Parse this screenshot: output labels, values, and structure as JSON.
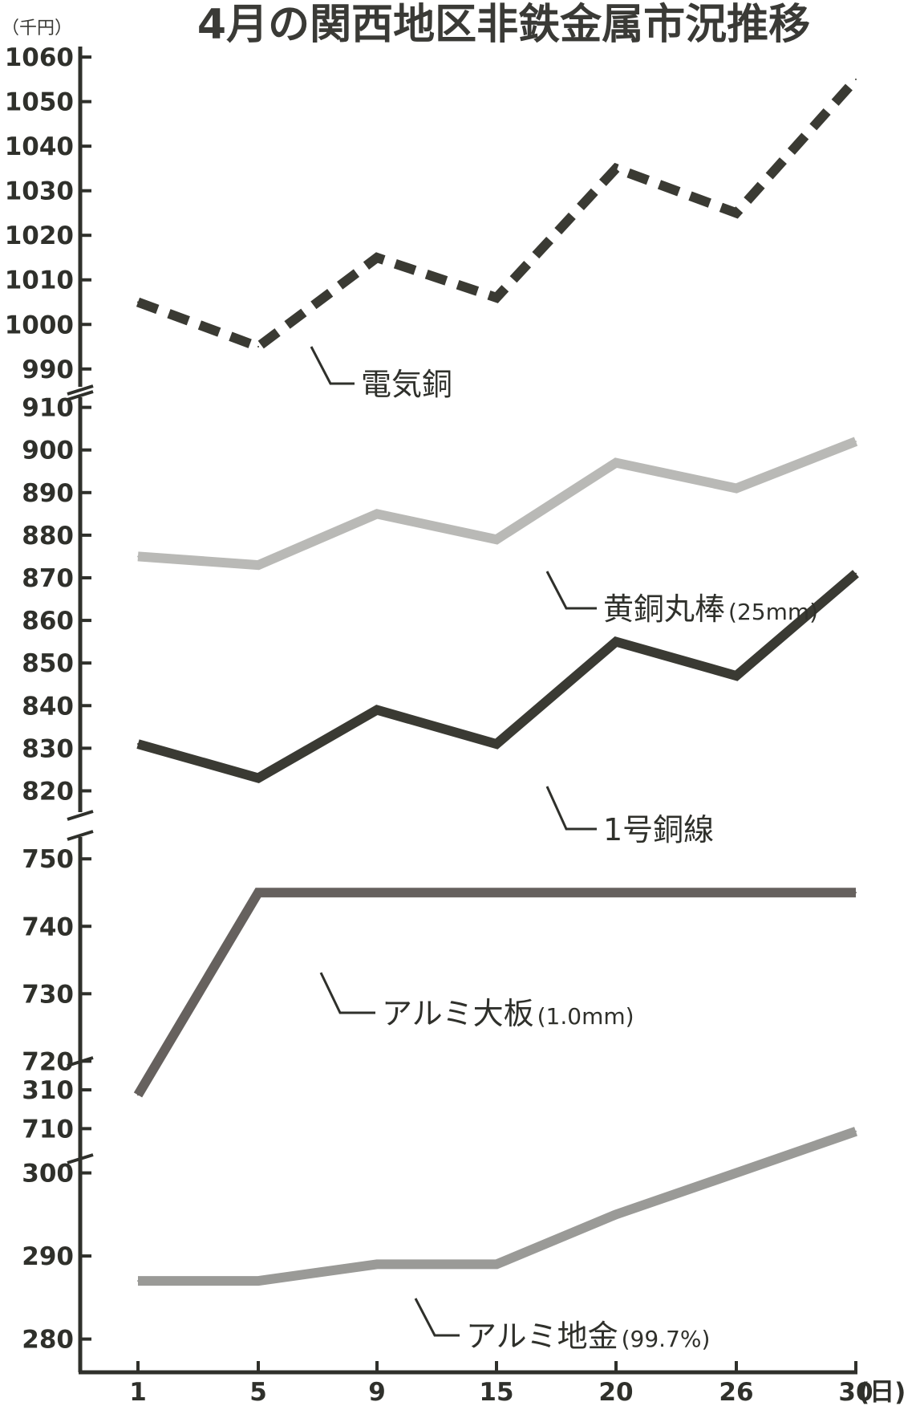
{
  "chart_data": {
    "type": "line",
    "title": "4月の関西地区非鉄金属市況推移",
    "y_unit": "（千円）",
    "x_unit": "(日)",
    "categories": [
      "1",
      "5",
      "9",
      "15",
      "20",
      "26",
      "30"
    ],
    "panels": [
      {
        "ylim": [
          986,
          1062
        ],
        "ticks": [
          990,
          1000,
          1010,
          1020,
          1030,
          1040,
          1050,
          1060
        ],
        "series": [
          {
            "name": "電気銅",
            "label_main": "電気銅",
            "label_sub": "",
            "color": "#3a3a33",
            "style": "dashed",
            "values": [
              1005,
              995,
              1015,
              1006,
              1035,
              1025,
              1055
            ]
          }
        ]
      },
      {
        "ylim": [
          815,
          912
        ],
        "ticks": [
          820,
          830,
          840,
          850,
          860,
          870,
          880,
          890,
          900,
          910
        ],
        "series": [
          {
            "name": "黄銅丸棒(25mm)",
            "label_main": "黄銅丸棒",
            "label_sub": "(25mm)",
            "color": "#b9b9b6",
            "style": "solid",
            "values": [
              875,
              873,
              885,
              879,
              897,
              891,
              902
            ]
          },
          {
            "name": "1号銅線",
            "label_main": "1号銅線",
            "label_sub": "",
            "color": "#3a3a33",
            "style": "solid",
            "values": [
              831,
              823,
              839,
              831,
              855,
              847,
              871
            ]
          }
        ]
      },
      {
        "ylim": [
          706,
          753
        ],
        "ticks": [
          710,
          720,
          730,
          740,
          750
        ],
        "series": [
          {
            "name": "アルミ大板(1.0mm)",
            "label_main": "アルミ大板",
            "label_sub": "(1.0mm)",
            "color": "#66615e",
            "style": "solid",
            "values": [
              715,
              745,
              745,
              745,
              745,
              745,
              745
            ]
          }
        ]
      },
      {
        "ylim": [
          276,
          313
        ],
        "ticks": [
          280,
          290,
          300,
          310
        ],
        "series": [
          {
            "name": "アルミ地金(99.7%)",
            "label_main": "アルミ地金",
            "label_sub": "(99.7%)",
            "color": "#9a9a97",
            "style": "solid",
            "values": [
              287,
              287,
              289,
              289,
              295,
              300,
              305
            ]
          }
        ]
      }
    ]
  }
}
